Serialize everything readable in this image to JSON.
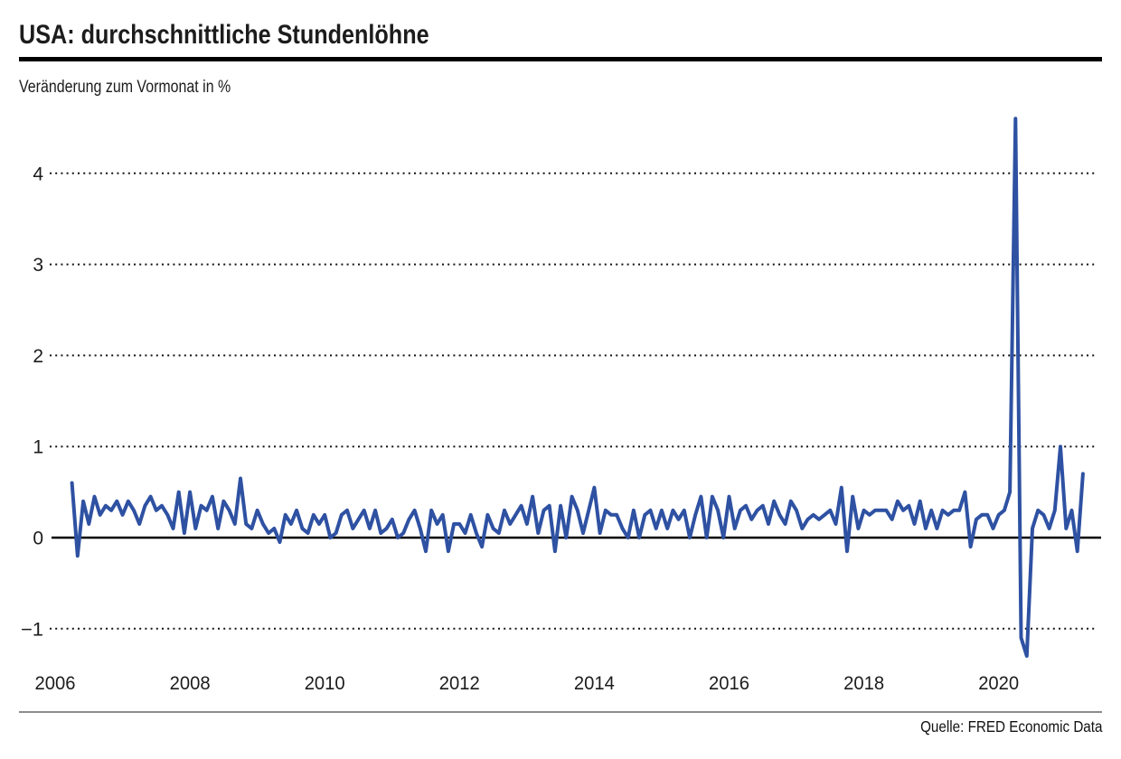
{
  "header": {
    "title": "USA: durchschnittliche Stundenlöhne",
    "subtitle": "Veränderung zum Vormonat in %"
  },
  "footer": {
    "source": "Quelle: FRED Economic Data"
  },
  "chart_data": {
    "type": "line",
    "title": "USA: durchschnittliche Stundenlöhne",
    "subtitle": "Veränderung zum Vormonat in %",
    "source": "Quelle: FRED Economic Data",
    "unit": "% Veränderung zum Vormonat",
    "frequency": "monthly",
    "start_month": "2006-04",
    "end_month": "2021-04",
    "values": [
      0.6,
      -0.2,
      0.4,
      0.15,
      0.45,
      0.25,
      0.35,
      0.3,
      0.4,
      0.25,
      0.4,
      0.3,
      0.15,
      0.35,
      0.45,
      0.3,
      0.35,
      0.25,
      0.1,
      0.5,
      0.05,
      0.5,
      0.1,
      0.35,
      0.3,
      0.45,
      0.1,
      0.4,
      0.3,
      0.15,
      0.65,
      0.15,
      0.1,
      0.3,
      0.15,
      0.05,
      0.1,
      -0.05,
      0.25,
      0.15,
      0.3,
      0.1,
      0.05,
      0.25,
      0.15,
      0.25,
      0.0,
      0.05,
      0.25,
      0.3,
      0.1,
      0.2,
      0.3,
      0.1,
      0.3,
      0.05,
      0.1,
      0.2,
      0.0,
      0.05,
      0.2,
      0.3,
      0.1,
      -0.15,
      0.3,
      0.15,
      0.25,
      -0.15,
      0.15,
      0.15,
      0.05,
      0.25,
      0.05,
      -0.1,
      0.25,
      0.1,
      0.05,
      0.3,
      0.15,
      0.25,
      0.35,
      0.15,
      0.45,
      0.05,
      0.3,
      0.35,
      -0.15,
      0.35,
      0.0,
      0.45,
      0.3,
      0.05,
      0.3,
      0.55,
      0.05,
      0.3,
      0.25,
      0.25,
      0.1,
      0.0,
      0.3,
      0.0,
      0.25,
      0.3,
      0.1,
      0.3,
      0.1,
      0.3,
      0.2,
      0.3,
      0.0,
      0.25,
      0.45,
      0.0,
      0.45,
      0.3,
      0.0,
      0.45,
      0.1,
      0.3,
      0.35,
      0.2,
      0.3,
      0.35,
      0.15,
      0.4,
      0.25,
      0.15,
      0.4,
      0.3,
      0.1,
      0.2,
      0.25,
      0.2,
      0.25,
      0.3,
      0.15,
      0.55,
      -0.15,
      0.45,
      0.1,
      0.3,
      0.25,
      0.3,
      0.3,
      0.3,
      0.2,
      0.4,
      0.3,
      0.35,
      0.15,
      0.4,
      0.1,
      0.3,
      0.1,
      0.3,
      0.25,
      0.3,
      0.3,
      0.5,
      -0.1,
      0.2,
      0.25,
      0.25,
      0.1,
      0.25,
      0.3,
      0.5,
      4.6,
      -1.1,
      -1.3,
      0.1,
      0.3,
      0.25,
      0.1,
      0.3,
      1.0,
      0.1,
      0.3,
      -0.15,
      0.7
    ],
    "y_ticks": [
      -1,
      0,
      1,
      2,
      3,
      4
    ],
    "y_tick_labels": [
      "−1",
      "0",
      "1",
      "2",
      "3",
      "4"
    ],
    "x_ticks": [
      2006,
      2008,
      2010,
      2012,
      2014,
      2016,
      2018,
      2020
    ],
    "ylim": [
      -1.45,
      4.7
    ],
    "xlim": [
      2006,
      2021.6
    ],
    "grid": "horizontal dotted",
    "zero_line": true,
    "legend": "none",
    "line_color": "#2e51a2",
    "grid_color": "#141414",
    "zero_line_color": "#000000",
    "text_color": "#1c1c1c"
  }
}
